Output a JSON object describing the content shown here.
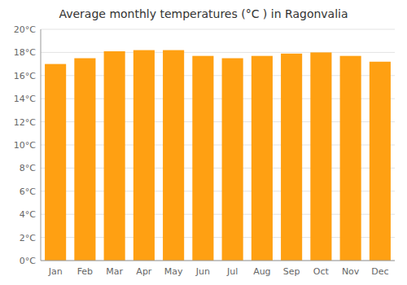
{
  "chart_data": {
    "type": "bar",
    "title": "Average monthly temperatures (°C ) in Ragonvalia",
    "categories": [
      "Jan",
      "Feb",
      "Mar",
      "Apr",
      "May",
      "Jun",
      "Jul",
      "Aug",
      "Sep",
      "Oct",
      "Nov",
      "Dec"
    ],
    "values": [
      17.0,
      17.5,
      18.1,
      18.2,
      18.2,
      17.7,
      17.5,
      17.7,
      17.9,
      18.0,
      17.7,
      17.2
    ],
    "color": "#FFA012",
    "ylim": [
      0,
      20
    ],
    "yticks": [
      {
        "value": 0,
        "label": "0°C"
      },
      {
        "value": 2,
        "label": "2°C"
      },
      {
        "value": 4,
        "label": "4°C"
      },
      {
        "value": 6,
        "label": "6°C"
      },
      {
        "value": 8,
        "label": "8°C"
      },
      {
        "value": 10,
        "label": "10°C"
      },
      {
        "value": 12,
        "label": "12°C"
      },
      {
        "value": 14,
        "label": "14°C"
      },
      {
        "value": 16,
        "label": "16°C"
      },
      {
        "value": 18,
        "label": "18°C"
      },
      {
        "value": 20,
        "label": "20°C"
      }
    ],
    "grid": true
  }
}
